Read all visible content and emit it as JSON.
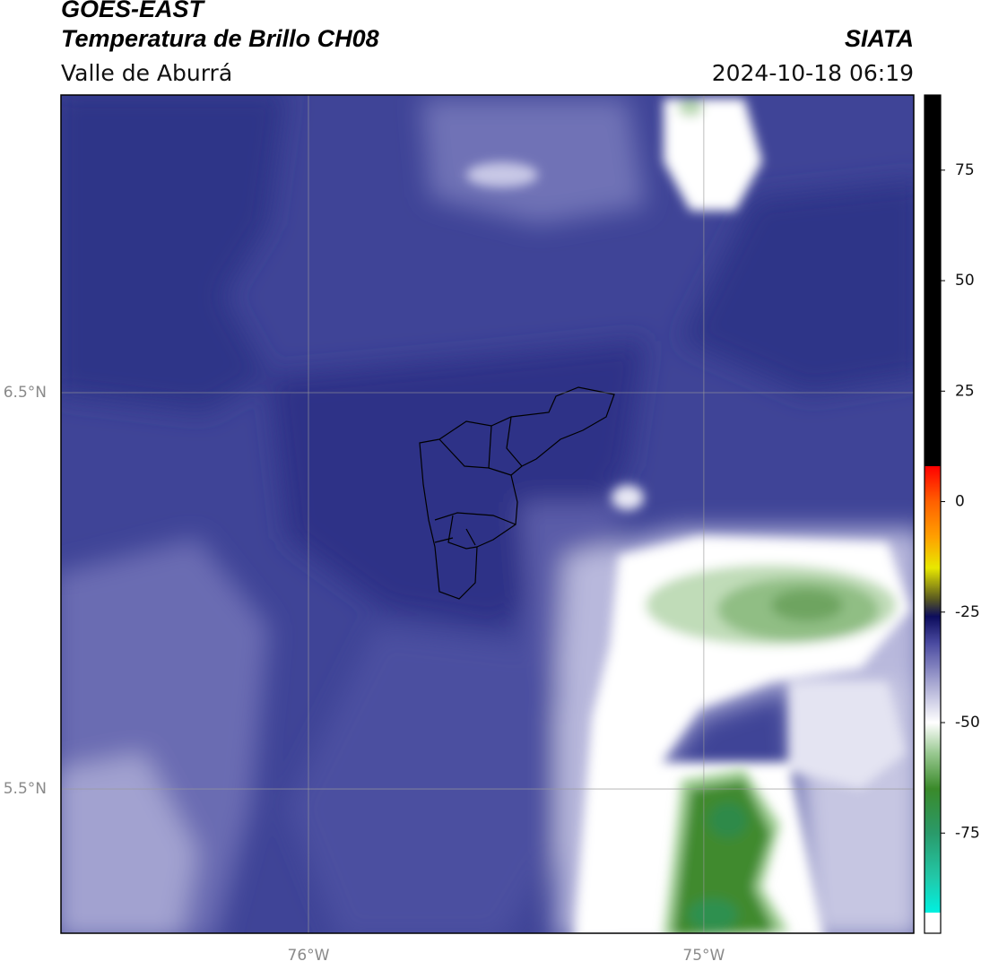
{
  "header": {
    "title": "GOES-EAST",
    "subtitle": "Temperatura de Brillo CH08",
    "region": "Valle de Aburrá",
    "source": "SIATA",
    "timestamp": "2024-10-18 06:19"
  },
  "map": {
    "lon_range": [
      -76.626,
      -74.469
    ],
    "lat_range": [
      5.136,
      7.251
    ],
    "lat_gridlines": [
      {
        "value": 6.5,
        "label": "6.5°N"
      },
      {
        "value": 5.5,
        "label": "5.5°N"
      }
    ],
    "lon_gridlines": [
      {
        "value": -76,
        "label": "76°W"
      },
      {
        "value": -75,
        "label": "75°W"
      }
    ]
  },
  "colorbar": {
    "range": [
      -93,
      92
    ],
    "ticks": [
      75,
      50,
      25,
      0,
      -25,
      -50,
      -75
    ],
    "under_color": "#ffffff",
    "stops": [
      {
        "value": -93,
        "color": "#00f0e0"
      },
      {
        "value": -85,
        "color": "#22c8a8"
      },
      {
        "value": -75,
        "color": "#2a9a6a"
      },
      {
        "value": -65,
        "color": "#3a8a2a"
      },
      {
        "value": -57,
        "color": "#98c890"
      },
      {
        "value": -50,
        "color": "#ffffff"
      },
      {
        "value": -40,
        "color": "#9c9ccc"
      },
      {
        "value": -32,
        "color": "#4a4aa0"
      },
      {
        "value": -26,
        "color": "#0c0c5c"
      },
      {
        "value": -22,
        "color": "#5a5a20"
      },
      {
        "value": -15,
        "color": "#e8e800"
      },
      {
        "value": -8,
        "color": "#ffa000"
      },
      {
        "value": 0,
        "color": "#ff6000"
      },
      {
        "value": 8,
        "color": "#ff0000"
      },
      {
        "value": 8,
        "color": "#000000"
      },
      {
        "value": 92,
        "color": "#000000"
      }
    ]
  }
}
